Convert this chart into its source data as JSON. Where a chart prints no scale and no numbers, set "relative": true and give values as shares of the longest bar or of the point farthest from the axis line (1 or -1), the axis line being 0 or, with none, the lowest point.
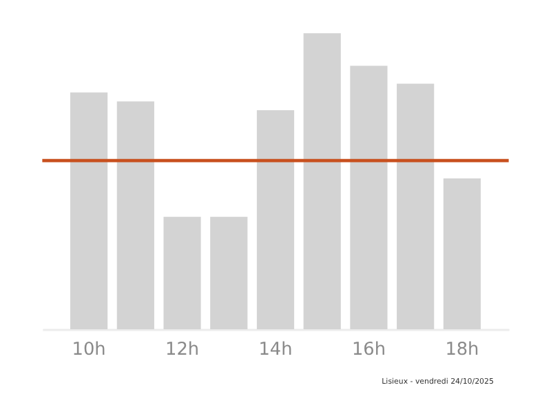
{
  "chart_data": {
    "type": "bar",
    "relative": true,
    "categories": [
      "10h",
      null,
      "12h",
      null,
      "14h",
      null,
      "16h",
      null,
      "18h"
    ],
    "values": [
      0.8,
      0.77,
      0.38,
      0.38,
      0.74,
      1,
      0.89,
      0.83,
      0.51
    ],
    "color": "#d3d3d3",
    "ref_lines": [
      {
        "axis": "y",
        "value": 0.57,
        "color": "#c8501e"
      }
    ],
    "annotations": [
      "Lisieux - vendredi 24/10/2025"
    ],
    "grid": false
  }
}
